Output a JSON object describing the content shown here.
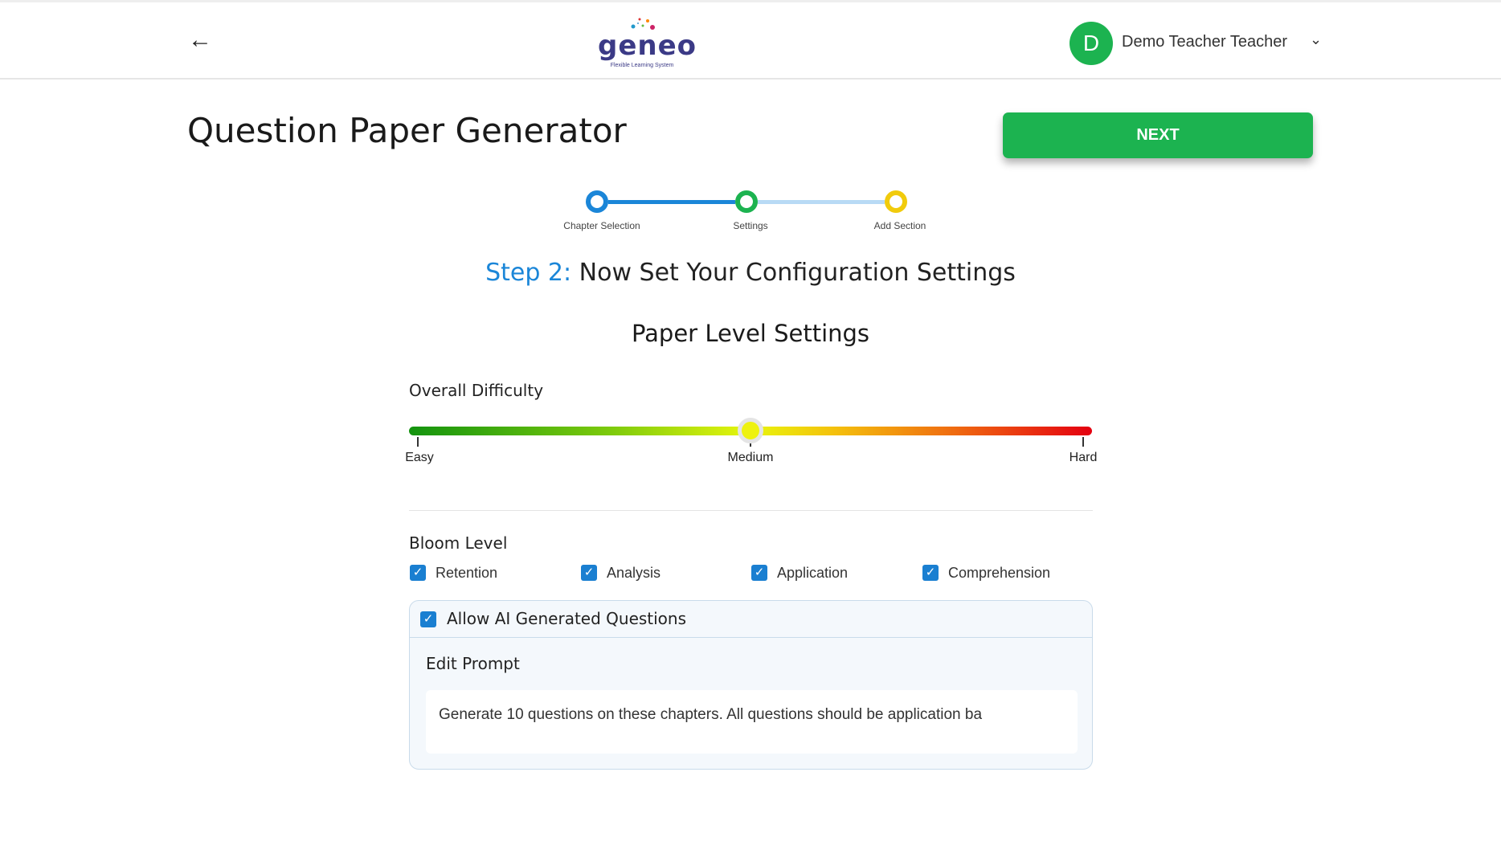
{
  "header": {
    "back_icon": "arrow-left-icon",
    "logo_text": "geneo",
    "logo_tagline": "Flexible Learning System",
    "avatar_initial": "D",
    "user_name": "Demo Teacher Teacher",
    "dropdown_icon": "chevron-down-icon"
  },
  "page": {
    "title": "Question Paper Generator",
    "next_label": "NEXT"
  },
  "stepper": {
    "steps": [
      {
        "label": "Chapter Selection",
        "color": "#1b86d8"
      },
      {
        "label": "Settings",
        "color": "#1cb350"
      },
      {
        "label": "Add Section",
        "color": "#f1cb0c"
      }
    ]
  },
  "step_heading": {
    "prefix": "Step 2:",
    "text": "Now Set Your Configuration Settings"
  },
  "section_title": "Paper Level Settings",
  "difficulty": {
    "label": "Overall Difficulty",
    "value": "Medium",
    "value_percent": 50,
    "ticks": [
      "Easy",
      "Medium",
      "Hard"
    ]
  },
  "bloom": {
    "label": "Bloom Level",
    "options": [
      {
        "label": "Retention",
        "checked": true
      },
      {
        "label": "Analysis",
        "checked": true
      },
      {
        "label": "Application",
        "checked": true
      },
      {
        "label": "Comprehension",
        "checked": true
      }
    ]
  },
  "ai": {
    "label": "Allow AI Generated Questions",
    "checked": true,
    "edit_prompt_label": "Edit Prompt",
    "prompt_value": "Generate 10 questions on these chapters. All questions should be application ba"
  },
  "colors": {
    "primary_green": "#1cb350",
    "accent_blue": "#1b86d8"
  }
}
